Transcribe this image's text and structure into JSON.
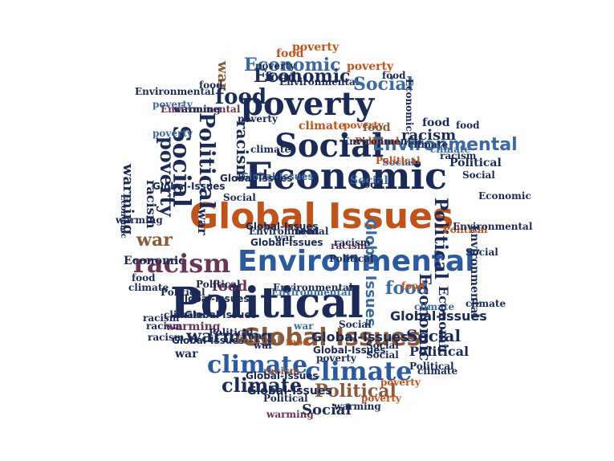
{
  "colors": {
    "navy": "#1b2a57",
    "blue": "#2c5aa0",
    "steel": "#3d6a9e",
    "orange": "#c0531c",
    "brown": "#8a5a3c",
    "plum": "#6b3557",
    "gray": "#5b6b7c",
    "background": "#fdfdfd"
  },
  "words": [
    {
      "text": "Political",
      "color": "navy"
    },
    {
      "text": "Economic",
      "color": "navy"
    },
    {
      "text": "Global Issues",
      "color": "orange"
    },
    {
      "text": "Environmental",
      "color": "blue"
    },
    {
      "text": "poverty",
      "color": "navy"
    },
    {
      "text": "Social",
      "color": "navy"
    },
    {
      "text": "racism",
      "color": "plum"
    },
    {
      "text": "climate",
      "color": "blue"
    },
    {
      "text": "climate",
      "color": "blue"
    },
    {
      "text": "Global Issues",
      "color": "brown"
    },
    {
      "text": "Political",
      "color": "brown"
    },
    {
      "text": "climate",
      "color": "navy"
    },
    {
      "text": "warming",
      "color": "navy"
    },
    {
      "text": "Environmental",
      "color": "steel"
    },
    {
      "text": "Economic",
      "color": "navy"
    },
    {
      "text": "food",
      "color": "navy"
    },
    {
      "text": "poverty",
      "color": "orange"
    },
    {
      "text": "food",
      "color": "orange"
    },
    {
      "text": "Economic",
      "color": "steel"
    },
    {
      "text": "Environmental",
      "color": "navy"
    },
    {
      "text": "Social",
      "color": "steel"
    },
    {
      "text": "war",
      "color": "brown"
    },
    {
      "text": "Political",
      "color": "navy"
    },
    {
      "text": "Social",
      "color": "navy"
    },
    {
      "text": "poverty",
      "color": "navy"
    },
    {
      "text": "racism",
      "color": "navy"
    },
    {
      "text": "food",
      "color": "navy"
    },
    {
      "text": "Global Issues",
      "color": "steel"
    },
    {
      "text": "racism",
      "color": "navy"
    },
    {
      "text": "Political",
      "color": "navy"
    },
    {
      "text": "Social",
      "color": "navy"
    },
    {
      "text": "food",
      "color": "steel"
    },
    {
      "text": "Global-Issues",
      "color": "navy"
    },
    {
      "text": "poverty",
      "color": "orange"
    },
    {
      "text": "Social",
      "color": "blue"
    },
    {
      "text": "Political",
      "color": "navy"
    },
    {
      "text": "food",
      "color": "navy"
    },
    {
      "text": "war",
      "color": "navy"
    },
    {
      "text": "climate",
      "color": "orange"
    },
    {
      "text": "poverty",
      "color": "steel"
    },
    {
      "text": "Environmental",
      "color": "plum"
    },
    {
      "text": "warming",
      "color": "navy"
    },
    {
      "text": "Global-Issues",
      "color": "navy"
    },
    {
      "text": "Political",
      "color": "orange"
    },
    {
      "text": "Social",
      "color": "steel"
    },
    {
      "text": "racism",
      "color": "navy"
    },
    {
      "text": "Economic",
      "color": "navy"
    },
    {
      "text": "war",
      "color": "brown"
    },
    {
      "text": "Political",
      "color": "navy"
    },
    {
      "text": "racism",
      "color": "plum"
    },
    {
      "text": "Global-Issues",
      "color": "steel"
    },
    {
      "text": "climate",
      "color": "navy"
    },
    {
      "text": "Economic",
      "color": "navy"
    },
    {
      "text": "warming",
      "color": "plum"
    },
    {
      "text": "food",
      "color": "plum"
    },
    {
      "text": "poverty",
      "color": "orange"
    },
    {
      "text": "food",
      "color": "brown"
    },
    {
      "text": "war",
      "color": "navy"
    },
    {
      "text": "climate",
      "color": "steel"
    },
    {
      "text": "racism",
      "color": "navy"
    },
    {
      "text": "Environmental",
      "color": "navy"
    },
    {
      "text": "poverty",
      "color": "steel"
    },
    {
      "text": "Economic",
      "color": "navy"
    },
    {
      "text": "Political",
      "color": "navy"
    },
    {
      "text": "Social",
      "color": "navy"
    },
    {
      "text": "warming",
      "color": "navy"
    },
    {
      "text": "racism",
      "color": "navy"
    },
    {
      "text": "food",
      "color": "navy"
    },
    {
      "text": "warming",
      "color": "navy"
    },
    {
      "text": "poverty",
      "color": "navy"
    },
    {
      "text": "Global-Issues",
      "color": "navy"
    },
    {
      "text": "Political",
      "color": "orange"
    },
    {
      "text": "warming",
      "color": "plum"
    },
    {
      "text": "war",
      "color": "steel"
    },
    {
      "text": "Environmental",
      "color": "steel"
    },
    {
      "text": "climate",
      "color": "navy"
    },
    {
      "text": "food",
      "color": "orange"
    },
    {
      "text": "racism",
      "color": "brown"
    },
    {
      "text": "Global-Issues",
      "color": "navy"
    },
    {
      "text": "Social",
      "color": "navy"
    },
    {
      "text": "Political",
      "color": "navy"
    },
    {
      "text": "poverty",
      "color": "orange"
    },
    {
      "text": "Social",
      "color": "navy"
    },
    {
      "text": "Political",
      "color": "navy"
    },
    {
      "text": "Global Issues",
      "color": "navy"
    },
    {
      "text": "Social",
      "color": "navy"
    },
    {
      "text": "Economic",
      "color": "navy"
    },
    {
      "text": "climate",
      "color": "navy"
    },
    {
      "text": "Environmental",
      "color": "navy"
    },
    {
      "text": "Political",
      "color": "orange"
    },
    {
      "text": "Social",
      "color": "navy"
    },
    {
      "text": "food",
      "color": "orange"
    },
    {
      "text": "racism",
      "color": "navy"
    },
    {
      "text": "Political",
      "color": "navy"
    },
    {
      "text": "war",
      "color": "navy"
    },
    {
      "text": "Global-Issues",
      "color": "navy"
    },
    {
      "text": "Environmental",
      "color": "navy"
    },
    {
      "text": "food",
      "color": "navy"
    },
    {
      "text": "poverty",
      "color": "navy"
    },
    {
      "text": "Economic",
      "color": "navy"
    },
    {
      "text": "food",
      "color": "navy"
    },
    {
      "text": "warming",
      "color": "navy"
    },
    {
      "text": "food",
      "color": "navy"
    },
    {
      "text": "Economic",
      "color": "navy"
    },
    {
      "text": "Environmental",
      "color": "navy"
    },
    {
      "text": "climate",
      "color": "navy"
    },
    {
      "text": "Social",
      "color": "navy"
    },
    {
      "text": "racism",
      "color": "navy"
    },
    {
      "text": "Environmental",
      "color": "navy"
    },
    {
      "text": "Global-Issues",
      "color": "navy"
    },
    {
      "text": "Political",
      "color": "navy"
    },
    {
      "text": "Global-Issues",
      "color": "navy"
    },
    {
      "text": "climate",
      "color": "navy"
    },
    {
      "text": "racism",
      "color": "navy"
    },
    {
      "text": "Global-Issues",
      "color": "navy"
    },
    {
      "text": "food",
      "color": "navy"
    },
    {
      "text": "war",
      "color": "navy"
    },
    {
      "text": "Political",
      "color": "navy"
    },
    {
      "text": "Global-Issues",
      "color": "navy"
    },
    {
      "text": "Global-Issues",
      "color": "navy"
    },
    {
      "text": "climate",
      "color": "navy"
    },
    {
      "text": "war",
      "color": "navy"
    },
    {
      "text": "poverty",
      "color": "orange"
    },
    {
      "text": "food",
      "color": "navy"
    },
    {
      "text": "climate",
      "color": "steel"
    },
    {
      "text": "poverty",
      "color": "navy"
    },
    {
      "text": "Political",
      "color": "brown"
    },
    {
      "text": "Social",
      "color": "navy"
    },
    {
      "text": "Global-Issues",
      "color": "navy"
    },
    {
      "text": "Environmental",
      "color": "navy"
    }
  ]
}
